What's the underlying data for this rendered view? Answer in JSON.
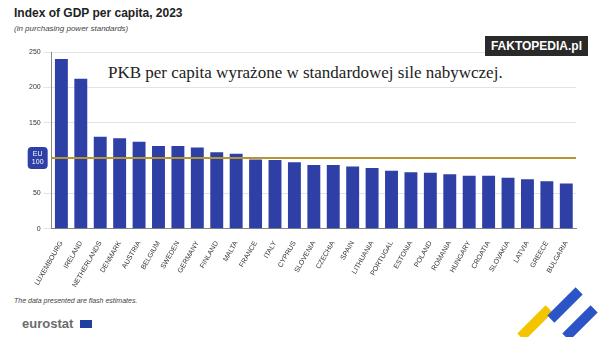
{
  "chart_data": {
    "type": "bar",
    "title": "Index of GDP per capita, 2023",
    "subtitle": "(in purchasing power standards)",
    "annotation": "PKB per capita wyrażone w standardowej sile nabywczej.",
    "watermark": "FAKTOPEDIA.pl",
    "note": "The data presented are flash estimates.",
    "source": "eurostat",
    "categories": [
      "LUXEMBOURG",
      "IRELAND",
      "NETHERLANDS",
      "DENMARK",
      "AUSTRIA",
      "BELGIUM",
      "SWEDEN",
      "GERMANY",
      "FINLAND",
      "MALTA",
      "FRANCE",
      "ITALY",
      "CYPRUS",
      "SLOVENIA",
      "CZECHIA",
      "SPAIN",
      "LITHUANIA",
      "PORTUGAL",
      "ESTONIA",
      "POLAND",
      "ROMANIA",
      "HUNGARY",
      "CROATIA",
      "SLOVAKIA",
      "LATVIA",
      "GREECE",
      "BULGARIA"
    ],
    "values": [
      240,
      212,
      130,
      128,
      123,
      117,
      117,
      115,
      108,
      106,
      98,
      97,
      94,
      90,
      90,
      88,
      86,
      82,
      80,
      79,
      77,
      75,
      75,
      72,
      70,
      67,
      64
    ],
    "color": "#2e3fa6",
    "reference_line": {
      "value": 100,
      "label": "EU 100"
    },
    "ylim": [
      0,
      250
    ],
    "yticks": [
      0,
      50,
      150,
      200,
      250
    ],
    "grid": true
  }
}
